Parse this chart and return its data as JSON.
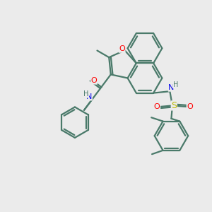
{
  "bg_color": "#ebebeb",
  "bond_color": "#4a7a6a",
  "atom_colors": {
    "O": "#ff0000",
    "N": "#0000ee",
    "S": "#bbbb00",
    "H": "#4a7a6a",
    "C": "#4a7a6a"
  },
  "line_width": 1.6,
  "figsize": [
    3.0,
    3.0
  ],
  "dpi": 100
}
